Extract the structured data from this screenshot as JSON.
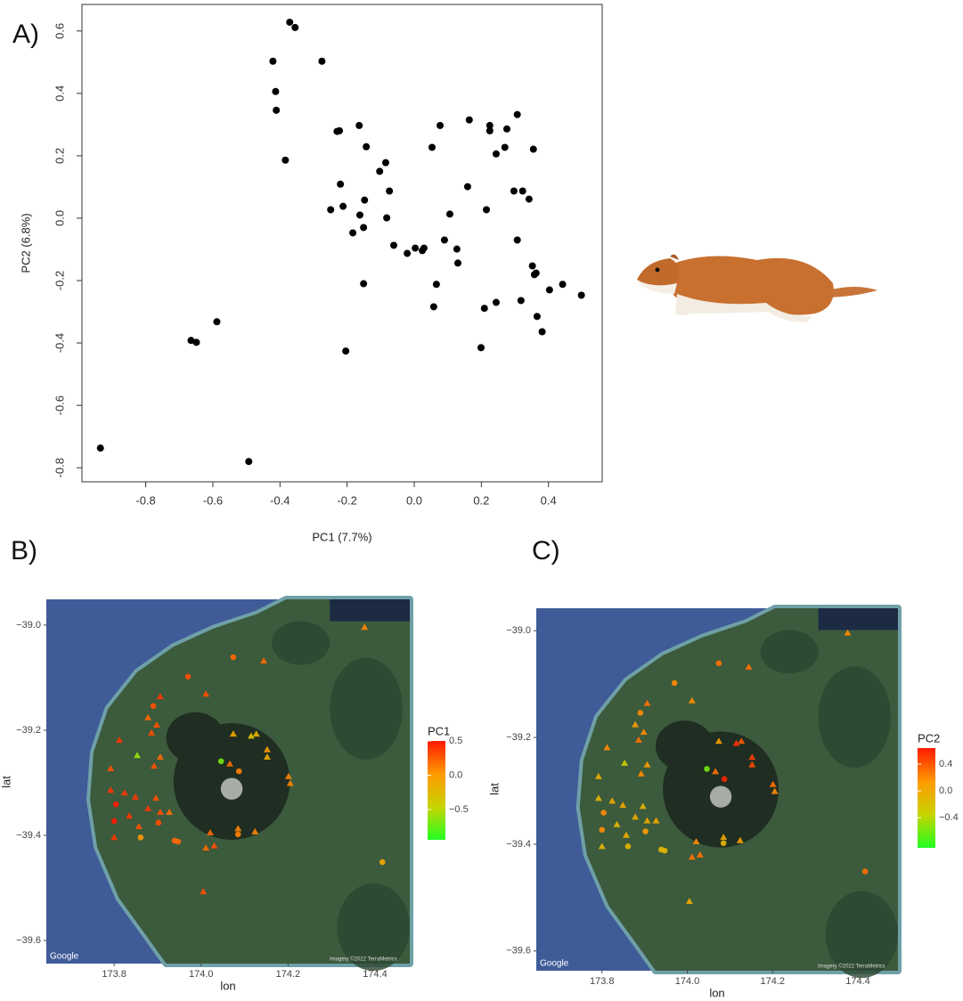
{
  "chart_data": [
    {
      "type": "scatter",
      "panel_label": "A)",
      "x_label": "PC1 (7.7%)",
      "y_label": "PC2 (6.8%)",
      "color": "#000000",
      "xlim": [
        -0.99,
        0.56
      ],
      "ylim": [
        -0.845,
        0.685
      ],
      "xticks": [
        -0.8,
        -0.6,
        -0.4,
        -0.2,
        {
          "value": 0,
          "label": "0.0"
        },
        0.2,
        0.4
      ],
      "yticks": [
        -0.8,
        -0.6,
        -0.4,
        -0.2,
        {
          "value": 0,
          "label": "0.0"
        },
        0.2,
        0.4,
        0.6
      ],
      "x": [
        -0.371,
        -0.355,
        -0.421,
        -0.275,
        -0.413,
        -0.411,
        -0.384,
        -0.23,
        -0.223,
        -0.164,
        -0.143,
        -0.22,
        -0.212,
        -0.249,
        -0.162,
        -0.148,
        -0.151,
        -0.183,
        -0.151,
        -0.103,
        -0.085,
        -0.074,
        -0.082,
        -0.061,
        -0.021,
        0.003,
        0.024,
        0.029,
        0.053,
        0.077,
        0.09,
        0.106,
        0.127,
        0.13,
        0.066,
        0.058,
        0.164,
        0.159,
        0.215,
        0.225,
        0.225,
        0.244,
        0.27,
        0.276,
        0.307,
        0.297,
        0.323,
        0.342,
        0.355,
        0.307,
        0.352,
        0.358,
        0.363,
        0.403,
        0.442,
        0.498,
        0.244,
        0.209,
        0.318,
        0.366,
        0.381,
        0.199,
        -0.204,
        -0.588,
        -0.665,
        -0.649,
        -0.935,
        -0.493
      ],
      "values": [
        0.628,
        0.611,
        0.503,
        0.503,
        0.406,
        0.346,
        0.186,
        0.278,
        0.28,
        0.297,
        0.229,
        0.109,
        0.038,
        0.027,
        0.01,
        0.058,
        -0.03,
        -0.047,
        -0.21,
        0.15,
        0.178,
        0.087,
        0.001,
        -0.087,
        -0.113,
        -0.096,
        -0.104,
        -0.096,
        0.227,
        0.297,
        -0.07,
        0.013,
        -0.099,
        -0.144,
        -0.212,
        -0.284,
        0.315,
        0.101,
        0.027,
        0.297,
        0.28,
        0.206,
        0.227,
        0.286,
        0.332,
        0.087,
        0.087,
        0.061,
        0.221,
        -0.07,
        -0.153,
        -0.181,
        -0.176,
        -0.23,
        -0.212,
        -0.247,
        -0.27,
        -0.289,
        -0.264,
        -0.315,
        -0.364,
        -0.415,
        -0.426,
        -0.332,
        -0.392,
        -0.398,
        -0.737,
        -0.78
      ]
    },
    {
      "type": "map",
      "panel_label": "B)",
      "x_label": "lon",
      "y_label": "lat",
      "colorbar_title": "PC1",
      "logo": "Google",
      "credit": "Imagery ©2022 TerraMetrics",
      "xlim": [
        173.644,
        174.48
      ],
      "ylim": [
        -39.644,
        -38.951
      ],
      "xticks": [
        173.8,
        {
          "value": 174,
          "label": "174.0"
        },
        174.2,
        174.4
      ],
      "yticks": [
        {
          "value": -39,
          "label": "−39.0"
        },
        {
          "value": -39.2,
          "label": "−39.2"
        },
        {
          "value": -39.4,
          "label": "−39.4"
        },
        {
          "value": -39.6,
          "label": "−39.6"
        }
      ],
      "clim": [
        -0.94,
        0.5
      ],
      "cticks": [
        0.5,
        {
          "value": 0,
          "label": "0.0"
        },
        {
          "value": -0.5,
          "label": "−0.5"
        }
      ],
      "colorscale": [
        "#22ff22",
        "#c8d400",
        "#ff9900",
        "#ff1a00"
      ],
      "x": [
        174.376,
        174.074,
        174.144,
        173.97,
        174.011,
        173.906,
        173.89,
        173.878,
        173.898,
        173.886,
        173.812,
        173.853,
        173.906,
        173.892,
        174.074,
        174.115,
        174.127,
        174.152,
        174.152,
        174.046,
        174.066,
        174.087,
        174.201,
        174.205,
        173.792,
        173.792,
        173.824,
        173.849,
        173.804,
        173.878,
        173.896,
        173.906,
        173.8,
        173.835,
        173.857,
        173.902,
        173.927,
        173.8,
        173.861,
        173.939,
        173.947,
        174.021,
        174.085,
        174.085,
        174.124,
        174.011,
        174.03,
        174.005,
        174.417
      ],
      "y": [
        -39.004,
        -39.061,
        -39.068,
        -39.098,
        -39.131,
        -39.136,
        -39.154,
        -39.176,
        -39.19,
        -39.205,
        -39.219,
        -39.248,
        -39.251,
        -39.268,
        -39.207,
        -39.211,
        -39.207,
        -39.237,
        -39.251,
        -39.259,
        -39.264,
        -39.278,
        -39.288,
        -39.301,
        -39.273,
        -39.314,
        -39.319,
        -39.327,
        -39.341,
        -39.349,
        -39.329,
        -39.356,
        -39.373,
        -39.363,
        -39.383,
        -39.376,
        -39.356,
        -39.404,
        -39.404,
        -39.41,
        -39.412,
        -39.395,
        -39.387,
        -39.398,
        -39.393,
        -39.424,
        -39.42,
        -39.507,
        -39.451
      ],
      "markers": [
        "triangle",
        "circle",
        "triangle",
        "circle",
        "triangle",
        "triangle",
        "circle",
        "triangle",
        "triangle",
        "triangle",
        "triangle",
        "triangle",
        "triangle",
        "triangle",
        "triangle",
        "triangle",
        "triangle",
        "triangle",
        "triangle",
        "circle",
        "triangle",
        "circle",
        "triangle",
        "triangle",
        "triangle",
        "triangle",
        "triangle",
        "triangle",
        "circle",
        "triangle",
        "triangle",
        "triangle",
        "circle",
        "triangle",
        "triangle",
        "circle",
        "triangle",
        "triangle",
        "circle",
        "circle",
        "circle",
        "triangle",
        "triangle",
        "circle",
        "triangle",
        "triangle",
        "triangle",
        "triangle",
        "circle"
      ],
      "values": [
        0.1,
        0.2,
        0.2,
        0.3,
        0.3,
        0.4,
        0.3,
        0.2,
        0.3,
        0.3,
        0.4,
        -0.6,
        0.2,
        0.3,
        -0.1,
        -0.3,
        -0.2,
        0.0,
        -0.1,
        -0.7,
        0.2,
        0.1,
        0.1,
        0.1,
        0.3,
        0.4,
        0.4,
        0.4,
        0.5,
        0.4,
        0.3,
        0.3,
        0.5,
        0.4,
        0.3,
        0.3,
        0.2,
        0.4,
        0.0,
        0.2,
        0.2,
        0.2,
        0.1,
        0.1,
        0.1,
        0.2,
        0.3,
        0.3,
        -0.1
      ]
    },
    {
      "type": "map",
      "panel_label": "C)",
      "x_label": "lon",
      "y_label": "lat",
      "colorbar_title": "PC2",
      "logo": "Google",
      "credit": "Imagery ©2022 TerraMetrics",
      "xlim": [
        173.646,
        174.494
      ],
      "ylim": [
        -39.637,
        -38.958
      ],
      "xticks": [
        173.8,
        {
          "value": 174,
          "label": "174.0"
        },
        174.2,
        174.4
      ],
      "yticks": [
        {
          "value": -39,
          "label": "−39.0"
        },
        {
          "value": -39.2,
          "label": "−39.2"
        },
        {
          "value": -39.4,
          "label": "−39.4"
        },
        {
          "value": -39.6,
          "label": "−39.6"
        }
      ],
      "clim": [
        -0.85,
        0.64
      ],
      "cticks": [
        0.4,
        {
          "value": 0,
          "label": "0.0"
        },
        {
          "value": -0.4,
          "label": "−0.4"
        }
      ],
      "colorscale": [
        "#22ff22",
        "#c8d400",
        "#ff9900",
        "#ff1a00"
      ],
      "x": [
        174.376,
        174.074,
        174.144,
        173.97,
        174.011,
        173.906,
        173.89,
        173.878,
        173.898,
        173.886,
        173.812,
        173.853,
        173.906,
        173.892,
        174.074,
        174.115,
        174.127,
        174.152,
        174.152,
        174.046,
        174.066,
        174.087,
        174.201,
        174.205,
        173.792,
        173.792,
        173.824,
        173.849,
        173.804,
        173.878,
        173.896,
        173.906,
        173.8,
        173.835,
        173.857,
        173.902,
        173.927,
        173.8,
        173.861,
        173.939,
        173.947,
        174.021,
        174.085,
        174.085,
        174.124,
        174.011,
        174.03,
        174.005,
        174.417
      ],
      "y": [
        -39.004,
        -39.061,
        -39.068,
        -39.098,
        -39.131,
        -39.136,
        -39.154,
        -39.176,
        -39.19,
        -39.205,
        -39.219,
        -39.248,
        -39.251,
        -39.268,
        -39.207,
        -39.211,
        -39.207,
        -39.237,
        -39.251,
        -39.259,
        -39.264,
        -39.278,
        -39.288,
        -39.301,
        -39.273,
        -39.314,
        -39.319,
        -39.327,
        -39.341,
        -39.349,
        -39.329,
        -39.356,
        -39.373,
        -39.363,
        -39.383,
        -39.376,
        -39.356,
        -39.404,
        -39.404,
        -39.41,
        -39.412,
        -39.395,
        -39.387,
        -39.398,
        -39.393,
        -39.424,
        -39.42,
        -39.507,
        -39.451
      ],
      "markers": [
        "triangle",
        "circle",
        "triangle",
        "circle",
        "triangle",
        "triangle",
        "circle",
        "triangle",
        "triangle",
        "triangle",
        "triangle",
        "triangle",
        "triangle",
        "triangle",
        "triangle",
        "triangle",
        "triangle",
        "triangle",
        "triangle",
        "circle",
        "triangle",
        "circle",
        "triangle",
        "triangle",
        "triangle",
        "triangle",
        "triangle",
        "triangle",
        "circle",
        "triangle",
        "triangle",
        "triangle",
        "circle",
        "triangle",
        "triangle",
        "circle",
        "triangle",
        "triangle",
        "circle",
        "circle",
        "circle",
        "triangle",
        "triangle",
        "circle",
        "triangle",
        "triangle",
        "triangle",
        "triangle",
        "circle"
      ],
      "values": [
        0.2,
        0.3,
        0.3,
        0.2,
        0.2,
        0.3,
        0.2,
        0.1,
        0.2,
        0.3,
        0.2,
        -0.3,
        0.1,
        0.2,
        0.1,
        0.55,
        0.4,
        0.5,
        0.45,
        -0.6,
        0.3,
        0.6,
        0.3,
        0.2,
        0.0,
        -0.1,
        0.0,
        0.0,
        0.2,
        0.0,
        -0.1,
        0.0,
        0.2,
        -0.1,
        0.0,
        0.1,
        0.0,
        -0.1,
        -0.1,
        -0.1,
        -0.1,
        0.2,
        0.0,
        -0.1,
        0.1,
        0.3,
        0.3,
        0.0,
        0.3
      ]
    }
  ]
}
